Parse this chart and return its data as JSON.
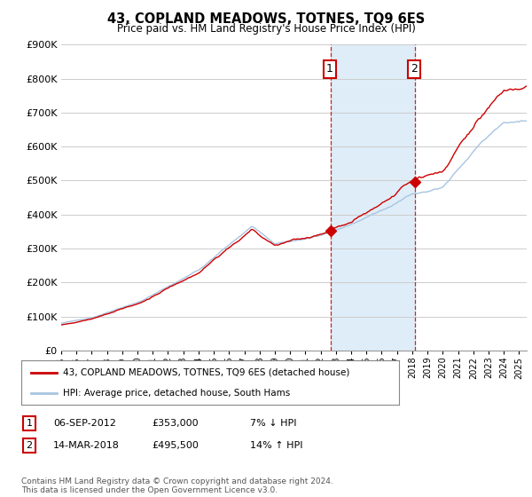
{
  "title": "43, COPLAND MEADOWS, TOTNES, TQ9 6ES",
  "subtitle": "Price paid vs. HM Land Registry's House Price Index (HPI)",
  "ylabel_ticks": [
    "£0",
    "£100K",
    "£200K",
    "£300K",
    "£400K",
    "£500K",
    "£600K",
    "£700K",
    "£800K",
    "£900K"
  ],
  "ylim": [
    0,
    900000
  ],
  "xlim_start": 1995.0,
  "xlim_end": 2025.5,
  "sale1_date": 2012.68,
  "sale1_price": 353000,
  "sale2_date": 2018.2,
  "sale2_price": 495500,
  "hpi_color": "#a8c4e0",
  "price_color": "#cc0000",
  "vline_color": "#cc0000",
  "shade_color": "#daeaf7",
  "legend_line1": "43, COPLAND MEADOWS, TOTNES, TQ9 6ES (detached house)",
  "legend_line2": "HPI: Average price, detached house, South Hams",
  "table_row1_num": "1",
  "table_row1_date": "06-SEP-2012",
  "table_row1_price": "£353,000",
  "table_row1_hpi": "7% ↓ HPI",
  "table_row2_num": "2",
  "table_row2_date": "14-MAR-2018",
  "table_row2_price": "£495,500",
  "table_row2_hpi": "14% ↑ HPI",
  "footnote": "Contains HM Land Registry data © Crown copyright and database right 2024.\nThis data is licensed under the Open Government Licence v3.0.",
  "background_color": "#ffffff",
  "plot_bg_color": "#ffffff",
  "grid_color": "#cccccc"
}
